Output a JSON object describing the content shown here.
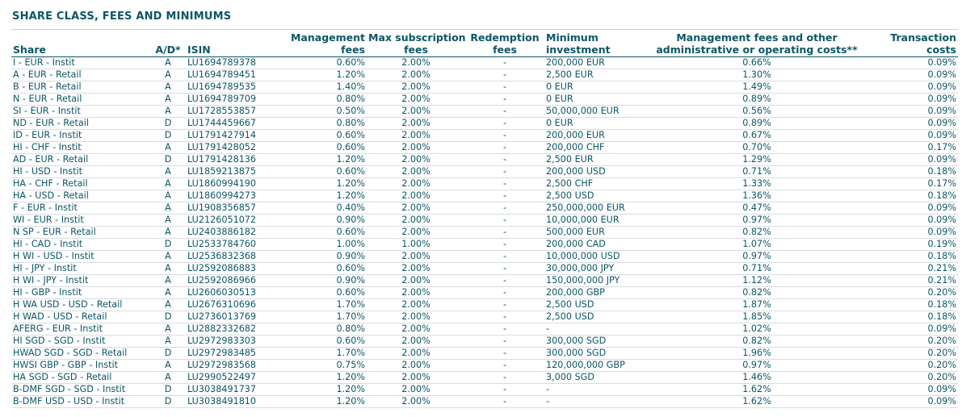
{
  "section_title": "SHARE CLASS, FEES AND MINIMUMS",
  "columns": {
    "share": "Share",
    "ad": "A/D*",
    "isin": "ISIN",
    "mgmt_fees_1": "Management",
    "mgmt_fees_2": "fees",
    "max_sub_1": "Max subscription",
    "max_sub_2": "fees",
    "redemption_1": "Redemption",
    "redemption_2": "fees",
    "min_inv_1": "Minimum",
    "min_inv_2": "investment",
    "mgmt_other_1": "Management fees and other",
    "mgmt_other_2": "administrative or operating costs**",
    "transaction_1": "Transaction",
    "transaction_2": "costs"
  },
  "rows": [
    {
      "share": "I - EUR - Instit",
      "ad": "A",
      "isin": "LU1694789378",
      "mgmt": "0.60%",
      "maxsub": "2.00%",
      "redemption": "-",
      "mininv": "200,000 EUR",
      "other": "0.66%",
      "trans": "0.09%"
    },
    {
      "share": "A - EUR - Retail",
      "ad": "A",
      "isin": "LU1694789451",
      "mgmt": "1.20%",
      "maxsub": "2.00%",
      "redemption": "-",
      "mininv": "2,500 EUR",
      "other": "1.30%",
      "trans": "0.09%"
    },
    {
      "share": "B - EUR - Retail",
      "ad": "A",
      "isin": "LU1694789535",
      "mgmt": "1.40%",
      "maxsub": "2.00%",
      "redemption": "-",
      "mininv": "0 EUR",
      "other": "1.49%",
      "trans": "0.09%"
    },
    {
      "share": "N - EUR - Retail",
      "ad": "A",
      "isin": "LU1694789709",
      "mgmt": "0.80%",
      "maxsub": "2.00%",
      "redemption": "-",
      "mininv": "0 EUR",
      "other": "0.89%",
      "trans": "0.09%"
    },
    {
      "share": "SI - EUR - Instit",
      "ad": "A",
      "isin": "LU1728553857",
      "mgmt": "0.50%",
      "maxsub": "2.00%",
      "redemption": "-",
      "mininv": "50,000,000 EUR",
      "other": "0.56%",
      "trans": "0.09%"
    },
    {
      "share": "ND - EUR - Retail",
      "ad": "D",
      "isin": "LU1744459667",
      "mgmt": "0.80%",
      "maxsub": "2.00%",
      "redemption": "-",
      "mininv": "0 EUR",
      "other": "0.89%",
      "trans": "0.09%"
    },
    {
      "share": "ID - EUR - Instit",
      "ad": "D",
      "isin": "LU1791427914",
      "mgmt": "0.60%",
      "maxsub": "2.00%",
      "redemption": "-",
      "mininv": "200,000 EUR",
      "other": "0.67%",
      "trans": "0.09%"
    },
    {
      "share": "HI - CHF - Instit",
      "ad": "A",
      "isin": "LU1791428052",
      "mgmt": "0.60%",
      "maxsub": "2.00%",
      "redemption": "-",
      "mininv": "200,000 CHF",
      "other": "0.70%",
      "trans": "0.17%"
    },
    {
      "share": "AD - EUR - Retail",
      "ad": "D",
      "isin": "LU1791428136",
      "mgmt": "1.20%",
      "maxsub": "2.00%",
      "redemption": "-",
      "mininv": "2,500 EUR",
      "other": "1.29%",
      "trans": "0.09%"
    },
    {
      "share": "HI - USD - Instit",
      "ad": "A",
      "isin": "LU1859213875",
      "mgmt": "0.60%",
      "maxsub": "2.00%",
      "redemption": "-",
      "mininv": "200,000 USD",
      "other": "0.71%",
      "trans": "0.18%"
    },
    {
      "share": "HA - CHF - Retail",
      "ad": "A",
      "isin": "LU1860994190",
      "mgmt": "1.20%",
      "maxsub": "2.00%",
      "redemption": "-",
      "mininv": "2,500 CHF",
      "other": "1.33%",
      "trans": "0.17%"
    },
    {
      "share": "HA - USD - Retail",
      "ad": "A",
      "isin": "LU1860994273",
      "mgmt": "1.20%",
      "maxsub": "2.00%",
      "redemption": "-",
      "mininv": "2,500 USD",
      "other": "1.36%",
      "trans": "0.18%"
    },
    {
      "share": "F - EUR - Instit",
      "ad": "A",
      "isin": "LU1908356857",
      "mgmt": "0.40%",
      "maxsub": "2.00%",
      "redemption": "-",
      "mininv": "250,000,000 EUR",
      "other": "0.47%",
      "trans": "0.09%"
    },
    {
      "share": "WI - EUR - Instit",
      "ad": "A",
      "isin": "LU2126051072",
      "mgmt": "0.90%",
      "maxsub": "2.00%",
      "redemption": "-",
      "mininv": "10,000,000 EUR",
      "other": "0.97%",
      "trans": "0.09%"
    },
    {
      "share": "N SP - EUR - Retail",
      "ad": "A",
      "isin": "LU2403886182",
      "mgmt": "0.60%",
      "maxsub": "2.00%",
      "redemption": "-",
      "mininv": "500,000 EUR",
      "other": "0.82%",
      "trans": "0.09%"
    },
    {
      "share": "HI - CAD - Instit",
      "ad": "D",
      "isin": "LU2533784760",
      "mgmt": "1.00%",
      "maxsub": "1.00%",
      "redemption": "-",
      "mininv": "200,000 CAD",
      "other": "1.07%",
      "trans": "0.19%"
    },
    {
      "share": "H WI - USD - Instit",
      "ad": "A",
      "isin": "LU2536832368",
      "mgmt": "0.90%",
      "maxsub": "2.00%",
      "redemption": "-",
      "mininv": "10,000,000 USD",
      "other": "0.97%",
      "trans": "0.18%"
    },
    {
      "share": "HI - JPY - Instit",
      "ad": "A",
      "isin": "LU2592086883",
      "mgmt": "0.60%",
      "maxsub": "2.00%",
      "redemption": "-",
      "mininv": "30,000,000 JPY",
      "other": "0.71%",
      "trans": "0.21%"
    },
    {
      "share": "H WI - JPY - Instit",
      "ad": "A",
      "isin": "LU2592086966",
      "mgmt": "0.90%",
      "maxsub": "2.00%",
      "redemption": "-",
      "mininv": "150,000,000 JPY",
      "other": "1.12%",
      "trans": "0.21%"
    },
    {
      "share": "HI - GBP - Instit",
      "ad": "A",
      "isin": "LU2606030513",
      "mgmt": "0.60%",
      "maxsub": "2.00%",
      "redemption": "-",
      "mininv": "200,000 GBP",
      "other": "0.82%",
      "trans": "0.20%"
    },
    {
      "share": "H WA USD - USD - Retail",
      "ad": "A",
      "isin": "LU2676310696",
      "mgmt": "1.70%",
      "maxsub": "2.00%",
      "redemption": "-",
      "mininv": "2,500 USD",
      "other": "1.87%",
      "trans": "0.18%"
    },
    {
      "share": "H WAD - USD - Retail",
      "ad": "D",
      "isin": "LU2736013769",
      "mgmt": "1.70%",
      "maxsub": "2.00%",
      "redemption": "-",
      "mininv": "2,500 USD",
      "other": "1.85%",
      "trans": "0.18%"
    },
    {
      "share": "AFERG - EUR - Instit",
      "ad": "A",
      "isin": "LU2882332682",
      "mgmt": "0.80%",
      "maxsub": "2.00%",
      "redemption": "-",
      "mininv": "-",
      "other": "1.02%",
      "trans": "0.09%"
    },
    {
      "share": "HI SGD - SGD - Instit",
      "ad": "A",
      "isin": "LU2972983303",
      "mgmt": "0.60%",
      "maxsub": "2.00%",
      "redemption": "-",
      "mininv": "300,000 SGD",
      "other": "0.82%",
      "trans": "0.20%"
    },
    {
      "share": "HWAD SGD - SGD - Retail",
      "ad": "D",
      "isin": "LU2972983485",
      "mgmt": "1.70%",
      "maxsub": "2.00%",
      "redemption": "-",
      "mininv": "300,000 SGD",
      "other": "1.96%",
      "trans": "0.20%"
    },
    {
      "share": "HWSI GBP - GBP - Instit",
      "ad": "A",
      "isin": "LU2972983568",
      "mgmt": "0.75%",
      "maxsub": "2.00%",
      "redemption": "-",
      "mininv": "120,000,000 GBP",
      "other": "0.97%",
      "trans": "0.20%"
    },
    {
      "share": "HA SGD - SGD - Retail",
      "ad": "A",
      "isin": "LU2990522497",
      "mgmt": "1.20%",
      "maxsub": "2.00%",
      "redemption": "-",
      "mininv": "3,000 SGD",
      "other": "1.46%",
      "trans": "0.20%"
    },
    {
      "share": "B-DMF SGD - SGD - Instit",
      "ad": "D",
      "isin": "LU3038491737",
      "mgmt": "1.20%",
      "maxsub": "2.00%",
      "redemption": "-",
      "mininv": "-",
      "other": "1.62%",
      "trans": "0.09%"
    },
    {
      "share": "B-DMF USD - USD - Instit",
      "ad": "D",
      "isin": "LU3038491810",
      "mgmt": "1.20%",
      "maxsub": "2.00%",
      "redemption": "-",
      "mininv": "-",
      "other": "1.62%",
      "trans": "0.09%"
    }
  ]
}
